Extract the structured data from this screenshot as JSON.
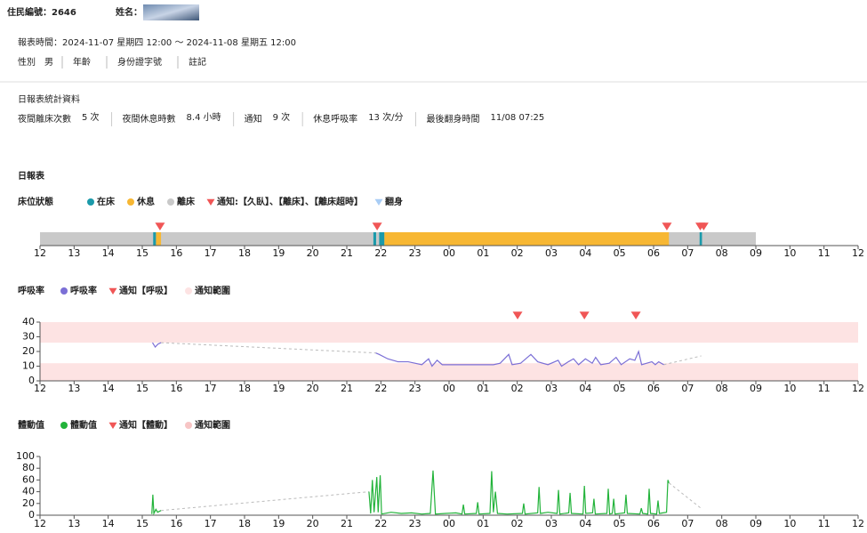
{
  "header": {
    "resident": "住民編號：2646",
    "name_label": "姓名：",
    "report_time": "報表時間：2024-11-07 星期四 12:00 ～ 2024-11-08 星期五 12:00",
    "info": [
      {
        "label": "性別",
        "value": "男"
      },
      {
        "label": "年齡"
      },
      {
        "label": "身份證字號"
      },
      {
        "label": "註記"
      }
    ]
  },
  "stats": {
    "title": "日報表統計資料",
    "items": [
      {
        "label": "夜間離床次數",
        "value": "5 次",
        "color": "#333333"
      },
      {
        "label": "夜間休息時數",
        "value": "8.4 小時",
        "color": "#c49a2a"
      },
      {
        "label": "通知",
        "value": "9 次",
        "color": "#d9534f"
      },
      {
        "label": "休息呼吸率",
        "value": "13 次/分",
        "color": "#5b5bd6"
      },
      {
        "label": "最後翻身時間",
        "value": "11/08 07:25",
        "color": "#2eb82e"
      }
    ]
  },
  "report_title": "日報表",
  "chart_data": [
    {
      "type": "timeline",
      "title": "床位狀態",
      "xlim": [
        0,
        24
      ],
      "xticks": [
        {
          "value": 0,
          "label": "12"
        },
        {
          "value": 1,
          "label": "13"
        },
        {
          "value": 2,
          "label": "14"
        },
        {
          "value": 3,
          "label": "15"
        },
        {
          "value": 4,
          "label": "16"
        },
        {
          "value": 5,
          "label": "17"
        },
        {
          "value": 6,
          "label": "18"
        },
        {
          "value": 7,
          "label": "19"
        },
        {
          "value": 8,
          "label": "20"
        },
        {
          "value": 9,
          "label": "21"
        },
        {
          "value": 10,
          "label": "22"
        },
        {
          "value": 11,
          "label": "23"
        },
        {
          "value": 12,
          "label": "00"
        },
        {
          "value": 13,
          "label": "01"
        },
        {
          "value": 14,
          "label": "02"
        },
        {
          "value": 15,
          "label": "03"
        },
        {
          "value": 16,
          "label": "04"
        },
        {
          "value": 17,
          "label": "05"
        },
        {
          "value": 18,
          "label": "06"
        },
        {
          "value": 19,
          "label": "07"
        },
        {
          "value": 20,
          "label": "08"
        },
        {
          "value": 21,
          "label": "09"
        },
        {
          "value": 22,
          "label": "10"
        },
        {
          "value": 23,
          "label": "11"
        },
        {
          "value": 24,
          "label": "12"
        }
      ],
      "series": [
        {
          "name": "在床",
          "color": "#1b9aaa",
          "intervals": [
            [
              3.32,
              3.4
            ],
            [
              9.78,
              9.86
            ],
            [
              9.95,
              10.1
            ],
            [
              19.35,
              19.42
            ]
          ]
        },
        {
          "name": "休息",
          "color": "#f7b733",
          "intervals": [
            [
              3.4,
              3.55
            ],
            [
              10.1,
              18.45
            ]
          ]
        },
        {
          "name": "離床",
          "color": "#c9c9c9",
          "intervals": [
            [
              0,
              21
            ]
          ]
        },
        {
          "name": "通知:【久臥】、【離床】、【離床超時】",
          "color": "#f05656",
          "x": [
            3.52,
            9.89,
            18.39,
            19.37,
            19.47
          ]
        },
        {
          "name": "翻身",
          "color": "#a9cdf5"
        }
      ]
    },
    {
      "type": "line",
      "title": "呼吸率",
      "xlim": [
        0,
        24
      ],
      "ylim": [
        0,
        40
      ],
      "yticks": [
        0,
        10,
        20,
        30,
        40
      ],
      "xticks": [
        {
          "value": 0,
          "label": "12"
        },
        {
          "value": 1,
          "label": "13"
        },
        {
          "value": 2,
          "label": "14"
        },
        {
          "value": 3,
          "label": "15"
        },
        {
          "value": 4,
          "label": "16"
        },
        {
          "value": 5,
          "label": "17"
        },
        {
          "value": 6,
          "label": "18"
        },
        {
          "value": 7,
          "label": "19"
        },
        {
          "value": 8,
          "label": "20"
        },
        {
          "value": 9,
          "label": "21"
        },
        {
          "value": 10,
          "label": "22"
        },
        {
          "value": 11,
          "label": "23"
        },
        {
          "value": 12,
          "label": "00"
        },
        {
          "value": 13,
          "label": "01"
        },
        {
          "value": 14,
          "label": "02"
        },
        {
          "value": 15,
          "label": "03"
        },
        {
          "value": 16,
          "label": "04"
        },
        {
          "value": 17,
          "label": "05"
        },
        {
          "value": 18,
          "label": "06"
        },
        {
          "value": 19,
          "label": "07"
        },
        {
          "value": 20,
          "label": "08"
        },
        {
          "value": 21,
          "label": "09"
        },
        {
          "value": 22,
          "label": "10"
        },
        {
          "value": 23,
          "label": "11"
        },
        {
          "value": 24,
          "label": "12"
        }
      ],
      "series": [
        {
          "name": "呼吸率",
          "color": "#7b6fd6",
          "x": [
            3.3,
            3.38,
            3.46,
            3.55,
            6.5,
            9.85,
            9.95,
            10.2,
            10.5,
            10.8,
            11.0,
            11.2,
            11.4,
            11.5,
            11.65,
            11.8,
            12.2,
            12.6,
            13.0,
            13.3,
            13.5,
            13.75,
            13.85,
            14.1,
            14.4,
            14.6,
            14.9,
            15.2,
            15.3,
            15.5,
            15.65,
            15.8,
            16.0,
            16.2,
            16.3,
            16.45,
            16.7,
            16.9,
            17.05,
            17.3,
            17.45,
            17.56,
            17.65,
            17.8,
            17.95,
            18.05,
            18.15,
            18.3,
            18.9,
            19.4
          ],
          "values": [
            26,
            23,
            25,
            26,
            null,
            19,
            18,
            15,
            13,
            13,
            12,
            11,
            15,
            10,
            14,
            11,
            11,
            11,
            11,
            11,
            12,
            18,
            11,
            12,
            18,
            13,
            11,
            14,
            10,
            13,
            15,
            11,
            15,
            12,
            16,
            11,
            12,
            16,
            11,
            15,
            14,
            20,
            11,
            12,
            13,
            11,
            13,
            11,
            null,
            17
          ]
        }
      ],
      "notifications": {
        "name": "通知【呼吸】",
        "color": "#f05656",
        "x": [
          14.01,
          15.97,
          17.48
        ]
      },
      "bands": {
        "name": "通知範圍",
        "color": "#fde3e3",
        "ranges": [
          [
            0,
            12
          ],
          [
            26,
            40
          ]
        ]
      }
    },
    {
      "type": "line",
      "title": "體動值",
      "xlim": [
        0,
        24
      ],
      "ylim": [
        0,
        100
      ],
      "yticks": [
        0,
        20,
        40,
        60,
        80,
        100
      ],
      "xticks": [
        {
          "value": 0,
          "label": "12"
        },
        {
          "value": 1,
          "label": "13"
        },
        {
          "value": 2,
          "label": "14"
        },
        {
          "value": 3,
          "label": "15"
        },
        {
          "value": 4,
          "label": "16"
        },
        {
          "value": 5,
          "label": "17"
        },
        {
          "value": 6,
          "label": "18"
        },
        {
          "value": 7,
          "label": "19"
        },
        {
          "value": 8,
          "label": "20"
        },
        {
          "value": 9,
          "label": "21"
        },
        {
          "value": 10,
          "label": "22"
        },
        {
          "value": 11,
          "label": "23"
        },
        {
          "value": 12,
          "label": "00"
        },
        {
          "value": 13,
          "label": "01"
        },
        {
          "value": 14,
          "label": "02"
        },
        {
          "value": 15,
          "label": "03"
        },
        {
          "value": 16,
          "label": "04"
        },
        {
          "value": 17,
          "label": "05"
        },
        {
          "value": 18,
          "label": "06"
        },
        {
          "value": 19,
          "label": "07"
        },
        {
          "value": 20,
          "label": "08"
        },
        {
          "value": 21,
          "label": "09"
        },
        {
          "value": 22,
          "label": "10"
        },
        {
          "value": 23,
          "label": "11"
        },
        {
          "value": 24,
          "label": "12"
        }
      ],
      "series": [
        {
          "name": "體動值",
          "color": "#22b33a",
          "x": [
            3.28,
            3.31,
            3.34,
            3.4,
            3.45,
            3.55,
            6.5,
            9.65,
            9.7,
            9.75,
            9.8,
            9.88,
            9.92,
            9.98,
            10.02,
            10.3,
            10.6,
            10.9,
            11.2,
            11.45,
            11.53,
            11.6,
            11.9,
            12.2,
            12.38,
            12.42,
            12.46,
            12.8,
            12.84,
            12.88,
            13.2,
            13.25,
            13.3,
            13.36,
            13.42,
            13.7,
            14.15,
            14.19,
            14.23,
            14.6,
            14.64,
            14.68,
            14.9,
            15.17,
            15.21,
            15.25,
            15.51,
            15.55,
            15.59,
            15.93,
            15.97,
            16.01,
            16.21,
            16.25,
            16.29,
            16.63,
            16.67,
            16.71,
            16.79,
            16.83,
            16.87,
            17.15,
            17.19,
            17.23,
            17.6,
            17.64,
            17.68,
            17.83,
            17.87,
            17.91,
            18.09,
            18.13,
            18.17,
            18.38,
            18.42,
            18.45,
            18.9,
            19.43
          ],
          "values": [
            2,
            35,
            3,
            10,
            5,
            8,
            null,
            40,
            3,
            60,
            5,
            65,
            5,
            68,
            2,
            5,
            3,
            4,
            2,
            3,
            76,
            2,
            3,
            4,
            2,
            18,
            2,
            3,
            22,
            2,
            3,
            75,
            5,
            40,
            3,
            2,
            3,
            20,
            2,
            4,
            48,
            3,
            5,
            3,
            43,
            2,
            4,
            38,
            3,
            2,
            50,
            3,
            4,
            28,
            2,
            3,
            45,
            2,
            3,
            28,
            2,
            4,
            35,
            3,
            2,
            12,
            3,
            2,
            45,
            3,
            2,
            25,
            3,
            5,
            60,
            55,
            null,
            10
          ]
        }
      ],
      "notifications": {
        "name": "通知【體動】",
        "color": "#f05656"
      },
      "bands": {
        "name": "通知範圍",
        "color": "#f7c5c5"
      }
    }
  ]
}
